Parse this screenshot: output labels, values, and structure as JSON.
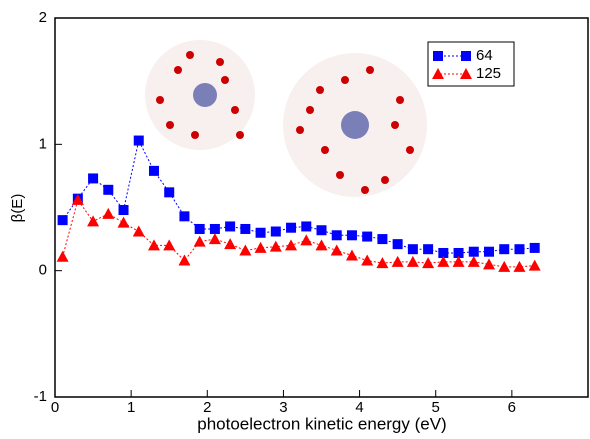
{
  "chart_data": {
    "type": "line",
    "x_label": "photoelectron kinetic energy (eV)",
    "y_label": "β(E)",
    "xlim": [
      0,
      7
    ],
    "ylim": [
      -1,
      2
    ],
    "xticks": [
      0,
      1,
      2,
      3,
      4,
      5,
      6
    ],
    "yticks": [
      -1,
      0,
      1,
      2
    ],
    "legend": "top-right",
    "x": [
      0.1,
      0.3,
      0.5,
      0.7,
      0.9,
      1.1,
      1.3,
      1.5,
      1.7,
      1.9,
      2.1,
      2.3,
      2.5,
      2.7,
      2.9,
      3.1,
      3.3,
      3.5,
      3.7,
      3.9,
      4.1,
      4.3,
      4.5,
      4.7,
      4.9,
      5.1,
      5.3,
      5.5,
      5.7,
      5.9,
      6.1,
      6.3
    ],
    "series": [
      {
        "name": "64",
        "color": "#0000ff",
        "marker": "square",
        "values": [
          0.4,
          0.57,
          0.73,
          0.64,
          0.48,
          1.03,
          0.79,
          0.62,
          0.43,
          0.33,
          0.33,
          0.35,
          0.33,
          0.3,
          0.31,
          0.34,
          0.35,
          0.32,
          0.28,
          0.28,
          0.27,
          0.25,
          0.21,
          0.17,
          0.17,
          0.14,
          0.14,
          0.15,
          0.15,
          0.17,
          0.17,
          0.18
        ]
      },
      {
        "name": "125",
        "color": "#ff0000",
        "marker": "triangle",
        "values": [
          0.11,
          0.56,
          0.39,
          0.45,
          0.38,
          0.31,
          0.2,
          0.2,
          0.08,
          0.23,
          0.25,
          0.21,
          0.16,
          0.18,
          0.19,
          0.2,
          0.24,
          0.2,
          0.16,
          0.12,
          0.08,
          0.06,
          0.07,
          0.07,
          0.06,
          0.07,
          0.07,
          0.07,
          0.05,
          0.03,
          0.03,
          0.04
        ]
      }
    ]
  }
}
